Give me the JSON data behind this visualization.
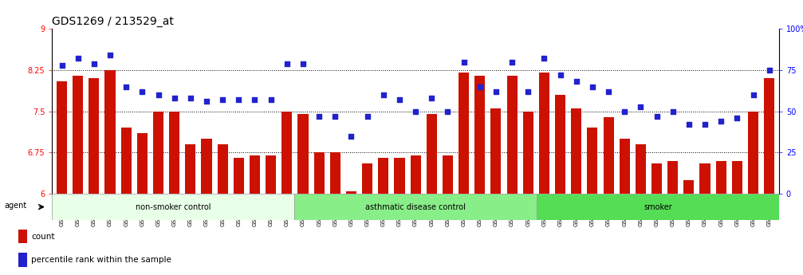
{
  "title": "GDS1269 / 213529_at",
  "samples": [
    "GSM38345",
    "GSM38346",
    "GSM38348",
    "GSM38350",
    "GSM38351",
    "GSM38353",
    "GSM38355",
    "GSM38356",
    "GSM38358",
    "GSM38362",
    "GSM38368",
    "GSM38371",
    "GSM38373",
    "GSM38377",
    "GSM38385",
    "GSM38361",
    "GSM38363",
    "GSM38364",
    "GSM38365",
    "GSM38370",
    "GSM38372",
    "GSM38375",
    "GSM38378",
    "GSM38379",
    "GSM38381",
    "GSM38383",
    "GSM38386",
    "GSM38387",
    "GSM38388",
    "GSM38389",
    "GSM38347",
    "GSM38349",
    "GSM38352",
    "GSM38354",
    "GSM38357",
    "GSM38359",
    "GSM38360",
    "GSM38366",
    "GSM38367",
    "GSM38369",
    "GSM38374",
    "GSM38376",
    "GSM38380",
    "GSM38382",
    "GSM38384"
  ],
  "bar_values": [
    8.05,
    8.15,
    8.1,
    8.25,
    7.2,
    7.1,
    7.5,
    7.5,
    6.9,
    7.0,
    6.9,
    6.65,
    6.7,
    6.7,
    7.5,
    7.45,
    6.75,
    6.75,
    6.05,
    6.55,
    6.65,
    6.65,
    6.7,
    7.45,
    6.7,
    8.2,
    8.15,
    7.55,
    8.15,
    7.5,
    8.2,
    7.8,
    7.55,
    7.2,
    7.4,
    7.0,
    6.9,
    6.55,
    6.6,
    6.25,
    6.55,
    6.6,
    6.6,
    7.5,
    8.1
  ],
  "percentile_values": [
    78,
    82,
    79,
    84,
    65,
    62,
    60,
    58,
    58,
    56,
    57,
    57,
    57,
    57,
    79,
    79,
    47,
    47,
    35,
    47,
    60,
    57,
    50,
    58,
    50,
    80,
    65,
    62,
    80,
    62,
    82,
    72,
    68,
    65,
    62,
    50,
    53,
    47,
    50,
    42,
    42,
    44,
    46,
    60,
    75
  ],
  "groups": [
    {
      "label": "non-smoker control",
      "start": 0,
      "end": 15,
      "color": "#e8ffe8"
    },
    {
      "label": "asthmatic disease control",
      "start": 15,
      "end": 30,
      "color": "#88ee88"
    },
    {
      "label": "smoker",
      "start": 30,
      "end": 45,
      "color": "#55dd55"
    }
  ],
  "ylim_left": [
    6.0,
    9.0
  ],
  "ylim_right": [
    0,
    100
  ],
  "yticks_left": [
    6.0,
    6.75,
    7.5,
    8.25,
    9.0
  ],
  "yticks_right": [
    0,
    25,
    50,
    75,
    100
  ],
  "hlines": [
    6.75,
    7.5,
    8.25
  ],
  "bar_color": "#cc1100",
  "dot_color": "#2222cc",
  "background_color": "#ffffff",
  "title_fontsize": 10,
  "tick_fontsize": 6,
  "bar_bottom": 6.0
}
